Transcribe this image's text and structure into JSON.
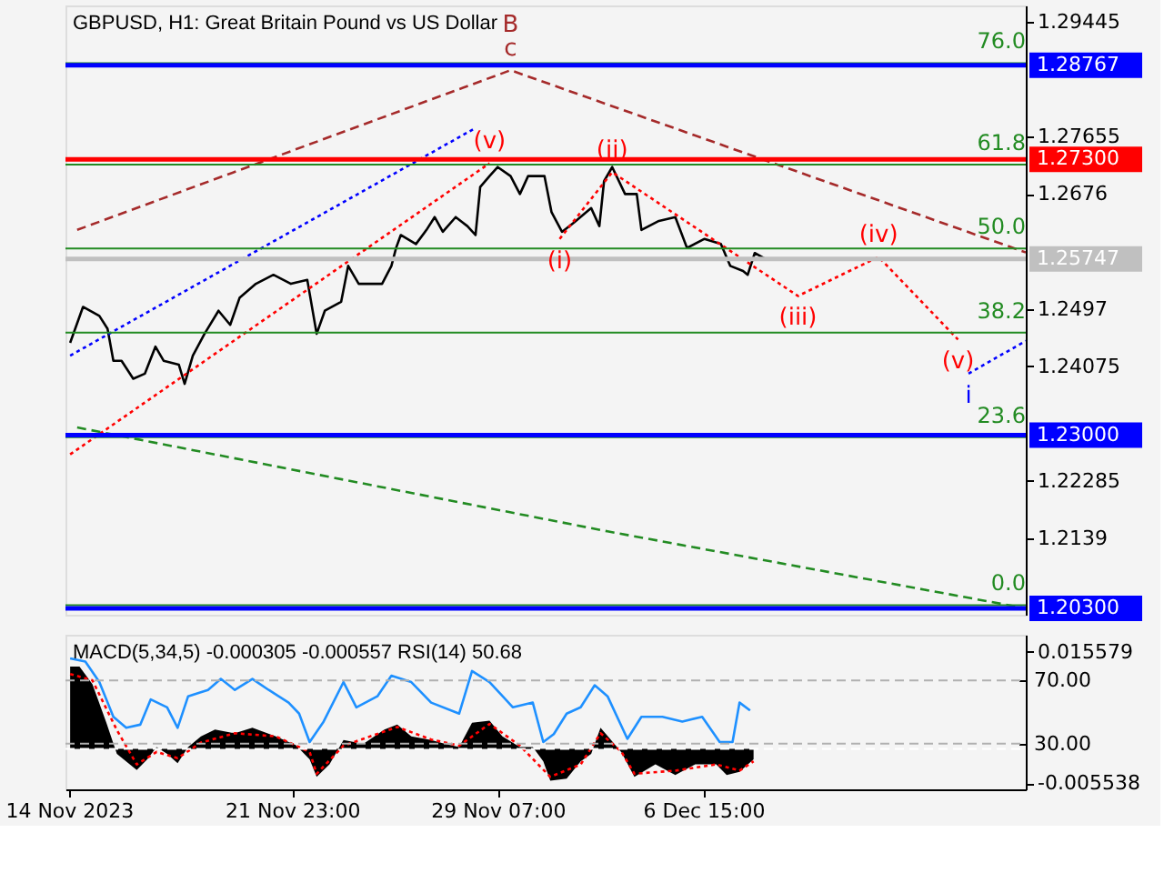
{
  "chart_data": [
    {
      "type": "line",
      "title": "GBPUSD, H1:  Great Britain Pound vs US Dollar",
      "xlim": [
        "2023-11-13T21:00",
        "2023-12-18T03:00"
      ],
      "ylim": [
        1.202,
        1.297
      ],
      "yticks": [
        1.29445,
        1.27655,
        1.2676,
        1.2497,
        1.24075,
        1.22285,
        1.2139
      ],
      "tick_labels": "y",
      "series": [
        {
          "color": "#000000",
          "x": [
            "2023-11-14T01:00",
            "2023-11-14T12:00",
            "2023-11-15T02:00",
            "2023-11-15T09:00",
            "2023-11-15T14:00",
            "2023-11-15T21:00",
            "2023-11-16T07:00",
            "2023-11-16T17:00",
            "2023-11-17T02:00",
            "2023-11-17T09:00",
            "2023-11-17T22:00",
            "2023-11-18T03:00",
            "2023-11-18T10:00",
            "2023-11-18T20:00",
            "2023-11-19T08:00",
            "2023-11-19T18:00",
            "2023-11-20T02:00",
            "2023-11-20T16:00",
            "2023-11-21T07:00",
            "2023-11-21T22:00",
            "2023-11-22T12:00",
            "2023-11-22T20:00",
            "2023-11-23T03:00",
            "2023-11-23T17:00",
            "2023-11-23T23:00",
            "2023-11-24T08:00",
            "2023-11-25T04:00",
            "2023-11-25T12:00",
            "2023-11-25T16:00",
            "2023-11-25T20:00",
            "2023-11-26T09:00",
            "2023-11-26T18:00",
            "2023-11-27T01:00",
            "2023-11-27T08:00",
            "2023-11-27T19:00",
            "2023-11-28T05:00",
            "2023-11-28T12:00",
            "2023-11-28T16:00",
            "2023-11-29T00:00",
            "2023-11-29T07:00",
            "2023-11-29T18:00",
            "2023-11-30T02:00",
            "2023-11-30T09:00",
            "2023-11-30T23:00",
            "2023-12-01T05:00",
            "2023-12-01T14:00",
            "2023-12-02T00:00",
            "2023-12-02T15:00",
            "2023-12-02T22:00",
            "2023-12-03T02:00",
            "2023-12-03T09:00",
            "2023-12-03T20:00",
            "2023-12-04T06:00",
            "2023-12-04T10:00",
            "2023-12-05T01:00",
            "2023-12-05T15:00",
            "2023-12-06T01:00",
            "2023-12-06T16:00",
            "2023-12-07T06:00",
            "2023-12-07T14:00",
            "2023-12-08T01:00",
            "2023-12-08T05:00",
            "2023-12-08T11:00",
            "2023-12-08T20:00"
          ],
          "values": [
            1.2444,
            1.25,
            1.2486,
            1.2466,
            1.2416,
            1.2416,
            1.2388,
            1.2396,
            1.2438,
            1.2416,
            1.241,
            1.238,
            1.2424,
            1.2458,
            1.2494,
            1.2472,
            1.2514,
            1.2536,
            1.255,
            1.2536,
            1.2542,
            1.2458,
            1.2494,
            1.2508,
            1.2564,
            1.2536,
            1.2536,
            1.2564,
            1.2592,
            1.2612,
            1.2598,
            1.262,
            1.264,
            1.2617,
            1.264,
            1.2626,
            1.2612,
            1.2687,
            1.2704,
            1.2718,
            1.2704,
            1.2676,
            1.2704,
            1.2704,
            1.2648,
            1.2617,
            1.2631,
            1.2654,
            1.2626,
            1.2696,
            1.2718,
            1.2676,
            1.2676,
            1.262,
            1.2634,
            1.264,
            1.2592,
            1.2606,
            1.2598,
            1.2564,
            1.2556,
            1.255,
            1.2584,
            1.2575
          ]
        },
        {
          "color": "#a52a2a",
          "line_style": "dashed",
          "x": [
            "2023-11-14T07:00",
            "2023-11-29T18:00",
            "2023-12-18T03:00"
          ],
          "values": [
            1.262,
            1.2869,
            1.2585
          ]
        },
        {
          "color": "#0000ff",
          "line_style": "dotted",
          "x": [
            "2023-11-14T01:00",
            "2023-11-28T12:00"
          ],
          "values": [
            1.2424,
            1.2779
          ]
        },
        {
          "color": "#0000ff",
          "line_style": "dotted",
          "x": [
            "2023-12-16T02:00",
            "2023-12-18T03:00"
          ],
          "values": [
            1.2396,
            1.2447
          ]
        },
        {
          "color": "#ff0000",
          "line_style": "dotted",
          "x": [
            "2023-11-14T01:00",
            "2023-11-29T00:00"
          ],
          "values": [
            1.227,
            1.2724
          ]
        },
        {
          "color": "#ff0000",
          "line_style": "dotted",
          "x": [
            "2023-12-01T12:00",
            "2023-12-03T09:00",
            "2023-12-10T00:00",
            "2023-12-12T21:00",
            "2023-12-15T17:00"
          ],
          "values": [
            1.2606,
            1.271,
            1.2517,
            1.2578,
            1.2449
          ]
        },
        {
          "color": "#228b22",
          "line_style": "dashed",
          "x": [
            "2023-11-14T07:00",
            "2023-12-03T05:00",
            "2023-12-18T03:00"
          ],
          "values": [
            1.2312,
            1.215,
            1.203
          ]
        }
      ],
      "ref_lines": [
        {
          "axis": "y",
          "value": 1.288,
          "color": "#228b22"
        },
        {
          "axis": "y",
          "value": 1.2722,
          "color": "#228b22"
        },
        {
          "axis": "y",
          "value": 1.2591,
          "color": "#228b22"
        },
        {
          "axis": "y",
          "value": 1.246,
          "color": "#228b22"
        },
        {
          "axis": "y",
          "value": 1.2297,
          "color": "#228b22"
        },
        {
          "axis": "y",
          "value": 1.2035,
          "color": "#228b22"
        },
        {
          "axis": "y",
          "value": 1.28767,
          "label": "1.28767",
          "color": "#0000ff"
        },
        {
          "axis": "y",
          "value": 1.273,
          "label": "1.27300",
          "color": "#ff0000"
        },
        {
          "axis": "y",
          "value": 1.25747,
          "label": "1.25747",
          "color": "#c0c0c0"
        },
        {
          "axis": "y",
          "value": 1.23,
          "label": "1.23000",
          "color": "#0000ff"
        },
        {
          "axis": "y",
          "value": 1.203,
          "label": "1.20300",
          "color": "#0000ff"
        }
      ],
      "annotations": [
        {
          "text": "B",
          "x": "2023-11-29T18:00",
          "y": 1.2869
        },
        {
          "text": "c",
          "x": "2023-11-29T18:00",
          "y": 1.2869
        },
        {
          "text": "(v)",
          "x": "2023-11-29T00:00",
          "y": 1.2724
        },
        {
          "text": "(ii)",
          "x": "2023-12-03T09:00",
          "y": 1.271
        },
        {
          "text": "(i)",
          "x": "2023-12-01T12:00",
          "y": 1.2606
        },
        {
          "text": "(iii)",
          "x": "2023-12-10T00:00",
          "y": 1.2517
        },
        {
          "text": "(iv)",
          "x": "2023-12-12T21:00",
          "y": 1.2578
        },
        {
          "text": "(v)",
          "x": "2023-12-15T17:00",
          "y": 1.2449
        },
        {
          "text": "i",
          "x": "2023-12-16T02:00",
          "y": 1.2396
        },
        {
          "text": "76.0",
          "x": "2023-12-18T03:00",
          "y": 1.288
        },
        {
          "text": "61.8",
          "x": "2023-12-18T03:00",
          "y": 1.2722
        },
        {
          "text": "50.0",
          "x": "2023-12-18T03:00",
          "y": 1.2591
        },
        {
          "text": "38.2",
          "x": "2023-12-18T03:00",
          "y": 1.246
        },
        {
          "text": "23.6",
          "x": "2023-12-18T03:00",
          "y": 1.2297
        },
        {
          "text": "0.0",
          "x": "2023-12-18T03:00",
          "y": 1.2035
        }
      ]
    },
    {
      "type": "area",
      "title": "MACD(5,34,5) -0.000305 -0.000557 RSI(14) 50.68",
      "xlim": [
        "2023-11-13T21:00",
        "2023-12-18T03:00"
      ],
      "xticks": [
        {
          "value": "2023-11-14T00:00",
          "label": "14 Nov 2023"
        },
        {
          "value": "2023-11-21T23:00",
          "label": "21 Nov 23:00"
        },
        {
          "value": "2023-11-29T07:00",
          "label": "29 Nov 07:00"
        },
        {
          "value": "2023-12-06T15:00",
          "label": "6 Dec 15:00"
        }
      ],
      "ylim": [
        -0.0065,
        0.0183
      ],
      "yticks": [
        0.015579,
        -0.005538
      ],
      "y2lim": [
        1,
        99
      ],
      "y2ticks": [
        {
          "value": 70,
          "label": "70.00"
        },
        {
          "value": 30,
          "label": "30.00"
        }
      ],
      "series": [
        {
          "color": "#000000",
          "x": [
            "2023-11-14T01:00",
            "2023-11-14T09:00",
            "2023-11-14T20:00",
            "2023-11-15T08:00",
            "2023-11-15T17:00",
            "2023-11-16T10:00",
            "2023-11-16T19:00",
            "2023-11-17T03:00",
            "2023-11-17T12:00",
            "2023-11-17T21:00",
            "2023-11-18T06:00",
            "2023-11-18T17:00",
            "2023-11-19T05:00",
            "2023-11-19T22:00",
            "2023-11-20T13:00",
            "2023-11-21T09:00",
            "2023-11-22T02:00",
            "2023-11-22T14:00",
            "2023-11-22T20:00",
            "2023-11-23T07:00",
            "2023-11-23T19:00",
            "2023-11-24T12:00",
            "2023-11-25T06:00",
            "2023-11-25T17:00",
            "2023-11-26T05:00",
            "2023-11-26T22:00",
            "2023-11-27T10:00",
            "2023-11-27T22:00",
            "2023-11-28T09:00",
            "2023-11-29T00:00",
            "2023-11-29T11:00",
            "2023-11-30T02:00",
            "2023-11-30T13:00",
            "2023-11-30T22:00",
            "2023-12-01T04:00",
            "2023-12-01T18:00",
            "2023-12-02T06:00",
            "2023-12-02T15:00",
            "2023-12-02T23:00",
            "2023-12-03T08:00",
            "2023-12-03T17:00",
            "2023-12-04T04:00",
            "2023-12-04T22:00",
            "2023-12-05T15:00",
            "2023-12-06T08:00",
            "2023-12-07T02:00",
            "2023-12-07T11:00",
            "2023-12-07T22:00",
            "2023-12-08T10:00"
          ],
          "values": [
            0.0132,
            0.0132,
            0.0104,
            0.0042,
            -0.0008,
            -0.0034,
            -0.0017,
            0.0003,
            -0.0008,
            -0.0023,
            0.0003,
            0.002,
            0.0031,
            0.0025,
            0.0034,
            0.002,
            0.0006,
            -0.0017,
            -0.0045,
            -0.0025,
            0.0014,
            0.0008,
            0.0031,
            0.0039,
            0.002,
            0.0014,
            0.0008,
            0.0003,
            0.0042,
            0.0045,
            0.002,
            0.0003,
            0.0003,
            -0.002,
            -0.0051,
            -0.0048,
            -0.002,
            -0.0008,
            0.0034,
            0.0014,
            -0.0006,
            -0.0045,
            -0.0025,
            -0.0042,
            -0.0025,
            -0.0025,
            -0.0042,
            -0.0037,
            -0.0017
          ]
        },
        {
          "type": "line",
          "color": "#ff0000",
          "line_style": "dotted",
          "x": [
            "2023-11-14T01:00",
            "2023-11-14T20:00",
            "2023-11-15T17:00",
            "2023-11-16T10:00",
            "2023-11-17T03:00",
            "2023-11-17T21:00",
            "2023-11-18T17:00",
            "2023-11-19T22:00",
            "2023-11-21T09:00",
            "2023-11-22T14:00",
            "2023-11-22T20:00",
            "2023-11-23T19:00",
            "2023-11-25T17:00",
            "2023-11-26T22:00",
            "2023-11-27T22:00",
            "2023-11-29T00:00",
            "2023-11-30T02:00",
            "2023-12-01T04:00",
            "2023-12-02T06:00",
            "2023-12-02T23:00",
            "2023-12-03T17:00",
            "2023-12-04T04:00",
            "2023-12-05T15:00",
            "2023-12-07T02:00",
            "2023-12-07T22:00",
            "2023-12-08T10:00"
          ],
          "values": [
            0.012,
            0.011,
            0.003,
            -0.0025,
            -0.0005,
            -0.0015,
            0.001,
            0.0025,
            0.002,
            -0.0005,
            -0.004,
            0.0005,
            0.0035,
            0.0015,
            0.0005,
            0.004,
            0.0005,
            -0.0045,
            -0.0025,
            0.0025,
            -0.0005,
            -0.004,
            -0.0035,
            -0.0025,
            -0.0035,
            -0.002
          ]
        },
        {
          "type": "line",
          "axis": "y2",
          "color": "#1e90ff",
          "x": [
            "2023-11-14T01:00",
            "2023-11-14T14:00",
            "2023-11-15T02:00",
            "2023-11-15T14:00",
            "2023-11-16T01:00",
            "2023-11-16T13:00",
            "2023-11-16T22:00",
            "2023-11-17T12:00",
            "2023-11-17T21:00",
            "2023-11-18T06:00",
            "2023-11-18T23:00",
            "2023-11-19T10:00",
            "2023-11-19T22:00",
            "2023-11-20T13:00",
            "2023-11-21T03:00",
            "2023-11-21T20:00",
            "2023-11-22T05:00",
            "2023-11-22T14:00",
            "2023-11-23T02:00",
            "2023-11-23T19:00",
            "2023-11-24T06:00",
            "2023-11-25T00:00",
            "2023-11-25T12:00",
            "2023-11-26T05:00",
            "2023-11-26T22:00",
            "2023-11-27T22:00",
            "2023-11-28T09:00",
            "2023-11-29T00:00",
            "2023-11-29T20:00",
            "2023-11-30T13:00",
            "2023-11-30T22:00",
            "2023-12-01T07:00",
            "2023-12-01T18:00",
            "2023-12-02T06:00",
            "2023-12-02T18:00",
            "2023-12-03T05:00",
            "2023-12-03T22:00",
            "2023-12-04T10:00",
            "2023-12-05T04:00",
            "2023-12-05T21:00",
            "2023-12-06T14:00",
            "2023-12-07T05:00",
            "2023-12-07T16:00",
            "2023-12-07T22:00",
            "2023-12-08T07:00"
          ],
          "values": [
            84,
            82,
            69,
            47,
            40,
            42,
            58,
            53,
            40,
            60,
            64,
            71,
            64,
            71,
            64,
            56,
            49,
            31,
            44,
            69,
            53,
            60,
            73,
            69,
            56,
            49,
            76,
            69,
            53,
            56,
            31,
            36,
            49,
            53,
            67,
            60,
            33,
            47,
            47,
            44,
            47,
            31,
            31,
            56,
            51
          ]
        }
      ],
      "ref_lines": [
        {
          "axis": "y2",
          "value": 70,
          "color": "#b0b0b0",
          "line_style": "dashed"
        },
        {
          "axis": "y2",
          "value": 30,
          "color": "#b0b0b0",
          "line_style": "dashed"
        },
        {
          "axis": "y",
          "value": 0,
          "color": "#ffffff",
          "line_style": "dashed"
        }
      ]
    }
  ]
}
